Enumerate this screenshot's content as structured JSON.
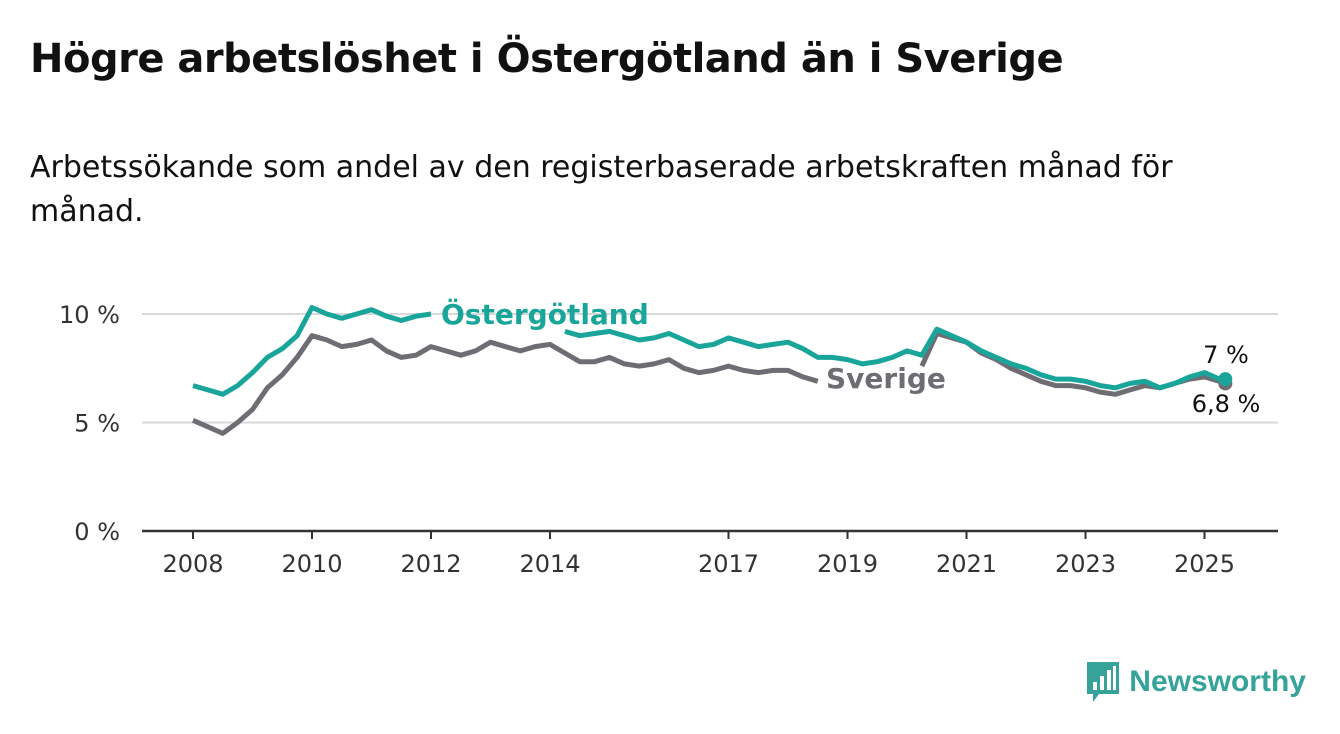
{
  "chart_data": {
    "type": "line",
    "title": "Högre arbetslöshet i Östergötland än i Sverige",
    "subtitle": "Arbetssökande som andel av den registerbaserade arbetskraften månad för månad.",
    "ylim": [
      0,
      10
    ],
    "yticks": [
      0,
      5,
      10
    ],
    "ytick_labels": [
      "0 %",
      "5 %",
      "10 %"
    ],
    "xlim": [
      2008,
      2026.2
    ],
    "xtick_labels": [
      "2008",
      "2010",
      "2012",
      "2014",
      "2017",
      "2019",
      "2021",
      "2023",
      "2025"
    ],
    "grid": "horizontal",
    "colors": {
      "ostergotland": "#1aa59b",
      "sverige": "#6f6d73"
    },
    "series": [
      {
        "name": "Östergötland",
        "end_label": "7 %",
        "points": [
          [
            2008.0,
            6.7
          ],
          [
            2008.25,
            6.5
          ],
          [
            2008.5,
            6.3
          ],
          [
            2008.75,
            6.7
          ],
          [
            2009.0,
            7.3
          ],
          [
            2009.25,
            8.0
          ],
          [
            2009.5,
            8.4
          ],
          [
            2009.75,
            9.0
          ],
          [
            2010.0,
            10.3
          ],
          [
            2010.25,
            10.0
          ],
          [
            2010.5,
            9.8
          ],
          [
            2010.75,
            10.0
          ],
          [
            2011.0,
            10.2
          ],
          [
            2011.25,
            9.9
          ],
          [
            2011.5,
            9.7
          ],
          [
            2011.75,
            9.9
          ],
          [
            2012.0,
            10.0
          ],
          [
            2014.25,
            9.2
          ],
          [
            2014.5,
            9.0
          ],
          [
            2014.75,
            9.1
          ],
          [
            2015.0,
            9.2
          ],
          [
            2015.25,
            9.0
          ],
          [
            2015.5,
            8.8
          ],
          [
            2015.75,
            8.9
          ],
          [
            2016.0,
            9.1
          ],
          [
            2016.25,
            8.8
          ],
          [
            2016.5,
            8.5
          ],
          [
            2016.75,
            8.6
          ],
          [
            2017.0,
            8.9
          ],
          [
            2017.25,
            8.7
          ],
          [
            2017.5,
            8.5
          ],
          [
            2017.75,
            8.6
          ],
          [
            2018.0,
            8.7
          ],
          [
            2018.25,
            8.4
          ],
          [
            2018.5,
            8.0
          ],
          [
            2018.75,
            8.0
          ],
          [
            2019.0,
            7.9
          ],
          [
            2019.25,
            7.7
          ],
          [
            2019.5,
            7.8
          ],
          [
            2019.75,
            8.0
          ],
          [
            2020.0,
            8.3
          ],
          [
            2020.25,
            8.1
          ],
          [
            2020.5,
            9.3
          ],
          [
            2020.75,
            9.0
          ],
          [
            2021.0,
            8.7
          ],
          [
            2021.25,
            8.3
          ],
          [
            2021.5,
            8.0
          ],
          [
            2021.75,
            7.7
          ],
          [
            2022.0,
            7.5
          ],
          [
            2022.25,
            7.2
          ],
          [
            2022.5,
            7.0
          ],
          [
            2022.75,
            7.0
          ],
          [
            2023.0,
            6.9
          ],
          [
            2023.25,
            6.7
          ],
          [
            2023.5,
            6.6
          ],
          [
            2023.75,
            6.8
          ],
          [
            2024.0,
            6.9
          ],
          [
            2024.25,
            6.6
          ],
          [
            2024.5,
            6.8
          ],
          [
            2024.75,
            7.1
          ],
          [
            2025.0,
            7.3
          ],
          [
            2025.25,
            7.0
          ],
          [
            2025.35,
            7.0
          ]
        ]
      },
      {
        "name": "Sverige",
        "end_label": "6,8 %",
        "points": [
          [
            2008.0,
            5.1
          ],
          [
            2008.25,
            4.8
          ],
          [
            2008.5,
            4.5
          ],
          [
            2008.75,
            5.0
          ],
          [
            2009.0,
            5.6
          ],
          [
            2009.25,
            6.6
          ],
          [
            2009.5,
            7.2
          ],
          [
            2009.75,
            8.0
          ],
          [
            2010.0,
            9.0
          ],
          [
            2010.25,
            8.8
          ],
          [
            2010.5,
            8.5
          ],
          [
            2010.75,
            8.6
          ],
          [
            2011.0,
            8.8
          ],
          [
            2011.25,
            8.3
          ],
          [
            2011.5,
            8.0
          ],
          [
            2011.75,
            8.1
          ],
          [
            2012.0,
            8.5
          ],
          [
            2012.25,
            8.3
          ],
          [
            2012.5,
            8.1
          ],
          [
            2012.75,
            8.3
          ],
          [
            2013.0,
            8.7
          ],
          [
            2013.25,
            8.5
          ],
          [
            2013.5,
            8.3
          ],
          [
            2013.75,
            8.5
          ],
          [
            2014.0,
            8.6
          ],
          [
            2014.25,
            8.2
          ],
          [
            2014.5,
            7.8
          ],
          [
            2014.75,
            7.8
          ],
          [
            2015.0,
            8.0
          ],
          [
            2015.25,
            7.7
          ],
          [
            2015.5,
            7.6
          ],
          [
            2015.75,
            7.7
          ],
          [
            2016.0,
            7.9
          ],
          [
            2016.25,
            7.5
          ],
          [
            2016.5,
            7.3
          ],
          [
            2016.75,
            7.4
          ],
          [
            2017.0,
            7.6
          ],
          [
            2017.25,
            7.4
          ],
          [
            2017.5,
            7.3
          ],
          [
            2017.75,
            7.4
          ],
          [
            2018.0,
            7.4
          ],
          [
            2018.25,
            7.1
          ],
          [
            2018.5,
            6.9
          ],
          [
            2020.25,
            7.6
          ],
          [
            2020.5,
            9.1
          ],
          [
            2020.75,
            8.9
          ],
          [
            2021.0,
            8.7
          ],
          [
            2021.25,
            8.2
          ],
          [
            2021.5,
            7.9
          ],
          [
            2021.75,
            7.5
          ],
          [
            2022.0,
            7.2
          ],
          [
            2022.25,
            6.9
          ],
          [
            2022.5,
            6.7
          ],
          [
            2022.75,
            6.7
          ],
          [
            2023.0,
            6.6
          ],
          [
            2023.25,
            6.4
          ],
          [
            2023.5,
            6.3
          ],
          [
            2023.75,
            6.5
          ],
          [
            2024.0,
            6.7
          ],
          [
            2024.25,
            6.6
          ],
          [
            2024.5,
            6.8
          ],
          [
            2024.75,
            7.0
          ],
          [
            2025.0,
            7.1
          ],
          [
            2025.25,
            6.9
          ],
          [
            2025.35,
            6.8
          ]
        ]
      }
    ]
  },
  "brand": {
    "name": "Newsworthy",
    "icon": "bar-chart-speech-bubble-icon"
  }
}
